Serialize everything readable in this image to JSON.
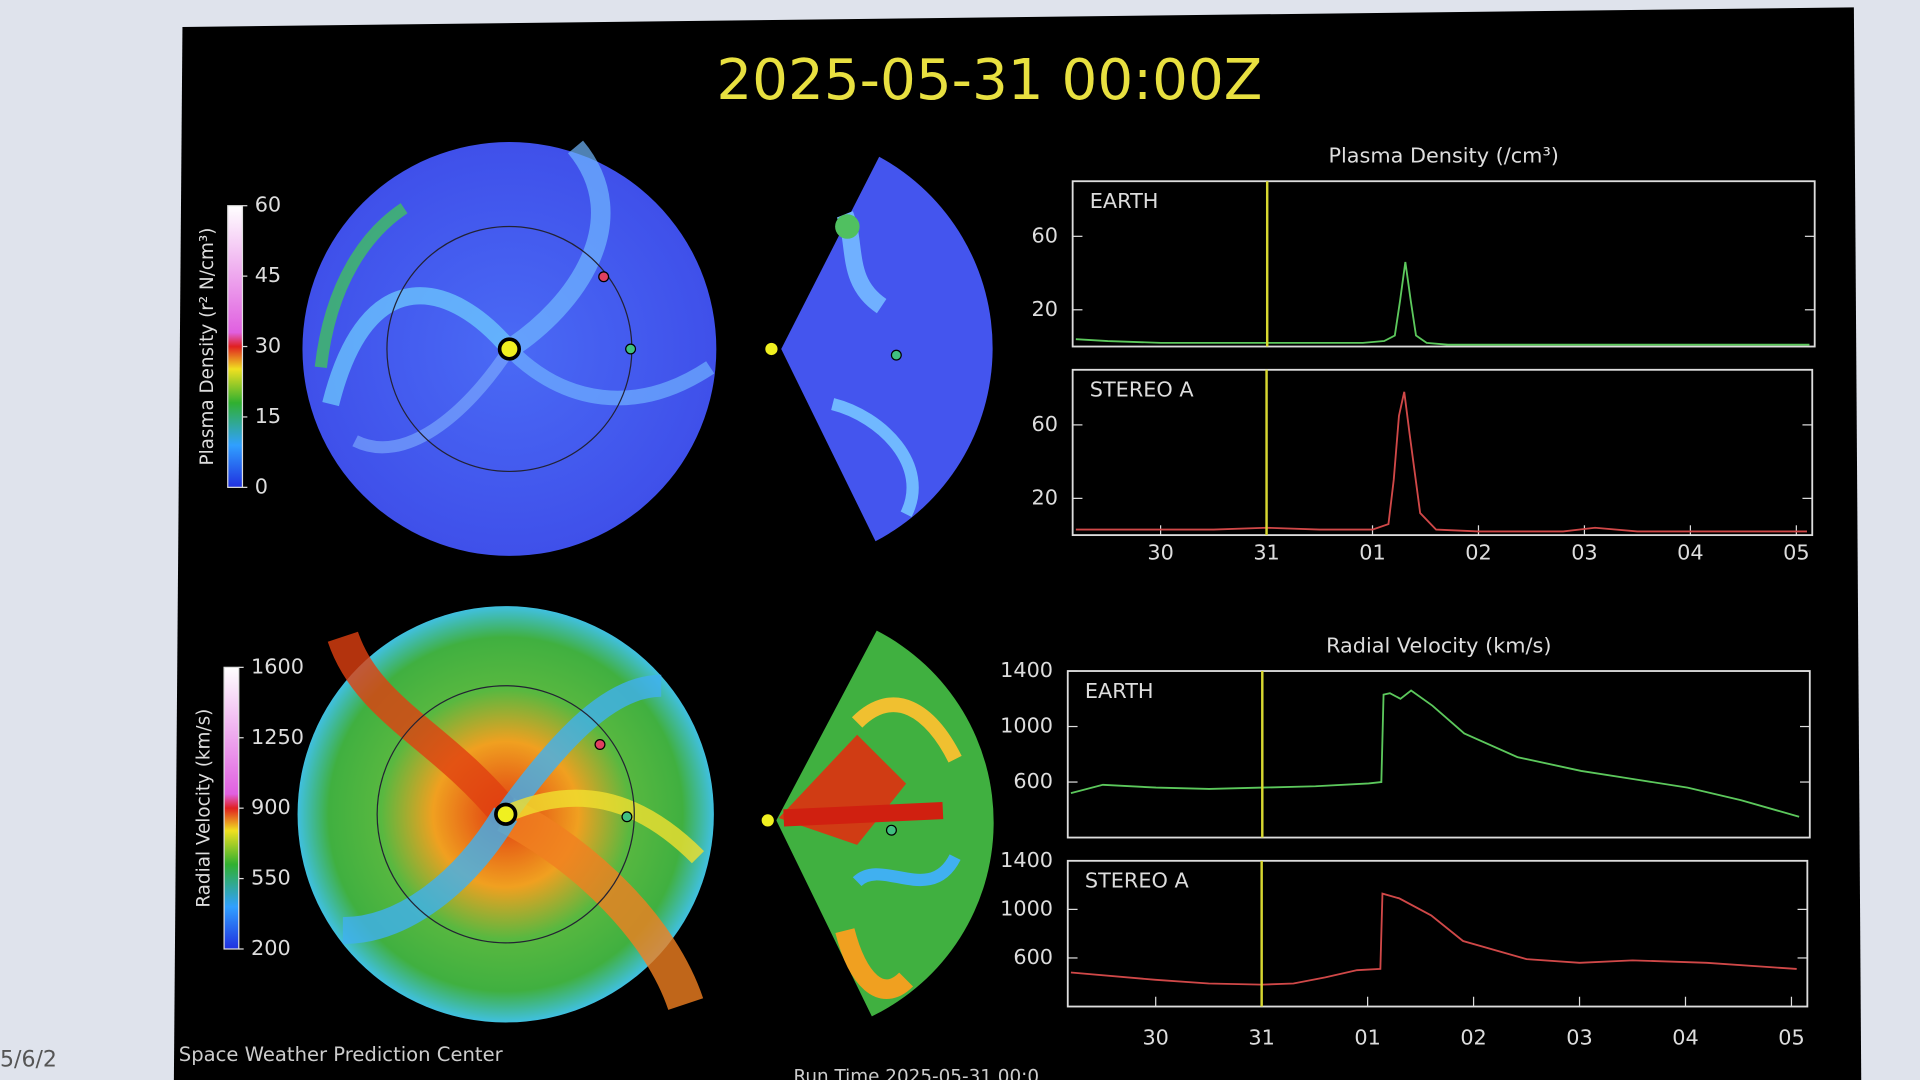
{
  "title": "2025-05-31 00:00Z",
  "credit": "Space Weather Prediction Center",
  "run_time": "Run Time  2025-05-31 00:0",
  "corner_text": "5/6/2",
  "colorbars": [
    {
      "label": "Plasma Density (r² N/cm³)",
      "ticks": [
        0,
        15,
        30,
        45,
        60
      ]
    },
    {
      "label": "Radial Velocity (km/s)",
      "ticks": [
        200,
        550,
        900,
        1250,
        1600
      ]
    }
  ],
  "chart_data": [
    {
      "type": "line",
      "title": "Plasma Density (/cm³)",
      "label": "EARTH",
      "color": "#5cc85c",
      "marker": 1,
      "x": [
        -0.8,
        -0.5,
        0,
        0.5,
        1,
        1.5,
        1.9,
        2.1,
        2.2,
        2.25,
        2.3,
        2.35,
        2.4,
        2.5,
        2.7,
        3,
        4,
        5,
        6.1
      ],
      "values": [
        4,
        3,
        2,
        2,
        2,
        2,
        2,
        3,
        6,
        25,
        46,
        25,
        6,
        2,
        1,
        1,
        1,
        1,
        1
      ],
      "xlim": [
        -0.83,
        6.15
      ],
      "ylim": [
        0,
        90
      ],
      "yticks": [
        20,
        60
      ]
    },
    {
      "type": "line",
      "label": "STEREO A",
      "color": "#d04848",
      "marker": 1,
      "x": [
        -0.8,
        0,
        0.5,
        1,
        1.5,
        2,
        2.15,
        2.2,
        2.25,
        2.3,
        2.35,
        2.45,
        2.6,
        3,
        3.8,
        4.1,
        4.5,
        5,
        6.1
      ],
      "values": [
        3,
        3,
        3,
        4,
        3,
        3,
        6,
        30,
        65,
        78,
        55,
        12,
        3,
        2,
        2,
        4,
        2,
        2,
        2
      ],
      "xlim": [
        -0.83,
        6.15
      ],
      "ylim": [
        0,
        90
      ],
      "yticks": [
        20,
        60
      ],
      "xticks": [
        {
          "value": 0,
          "label": "30"
        },
        {
          "value": 1,
          "label": "31"
        },
        {
          "value": 2,
          "label": "01"
        },
        {
          "value": 3,
          "label": "02"
        },
        {
          "value": 4,
          "label": "03"
        },
        {
          "value": 5,
          "label": "04"
        },
        {
          "value": 6,
          "label": "05"
        }
      ]
    },
    {
      "type": "line",
      "title": "Radial Velocity (km/s)",
      "label": "EARTH",
      "color": "#5cc85c",
      "marker": 1,
      "x": [
        -0.8,
        -0.5,
        0,
        0.5,
        1,
        1.5,
        2,
        2.12,
        2.14,
        2.2,
        2.3,
        2.4,
        2.6,
        2.9,
        3.4,
        4,
        4.5,
        5,
        5.5,
        6.05
      ],
      "values": [
        520,
        580,
        560,
        550,
        560,
        570,
        590,
        600,
        1230,
        1240,
        1200,
        1260,
        1150,
        950,
        780,
        680,
        620,
        560,
        470,
        350
      ],
      "xlim": [
        -0.83,
        6.15
      ],
      "ylim": [
        200,
        1400
      ],
      "yticks": [
        600,
        1000,
        1400
      ]
    },
    {
      "type": "line",
      "label": "STEREO A",
      "color": "#d04848",
      "marker": 1,
      "x": [
        -0.8,
        0,
        0.5,
        1,
        1.3,
        1.6,
        1.9,
        2.12,
        2.14,
        2.3,
        2.6,
        2.9,
        3.5,
        4,
        4.5,
        5.2,
        6.05
      ],
      "values": [
        480,
        420,
        390,
        380,
        390,
        440,
        500,
        510,
        1130,
        1090,
        950,
        740,
        590,
        560,
        580,
        560,
        510
      ],
      "xlim": [
        -0.83,
        6.15
      ],
      "ylim": [
        200,
        1400
      ],
      "yticks": [
        600,
        1000,
        1400
      ],
      "xticks": [
        {
          "value": 0,
          "label": "30"
        },
        {
          "value": 1,
          "label": "31"
        },
        {
          "value": 2,
          "label": "01"
        },
        {
          "value": 3,
          "label": "02"
        },
        {
          "value": 4,
          "label": "03"
        },
        {
          "value": 5,
          "label": "04"
        },
        {
          "value": 6,
          "label": "05"
        }
      ]
    }
  ]
}
